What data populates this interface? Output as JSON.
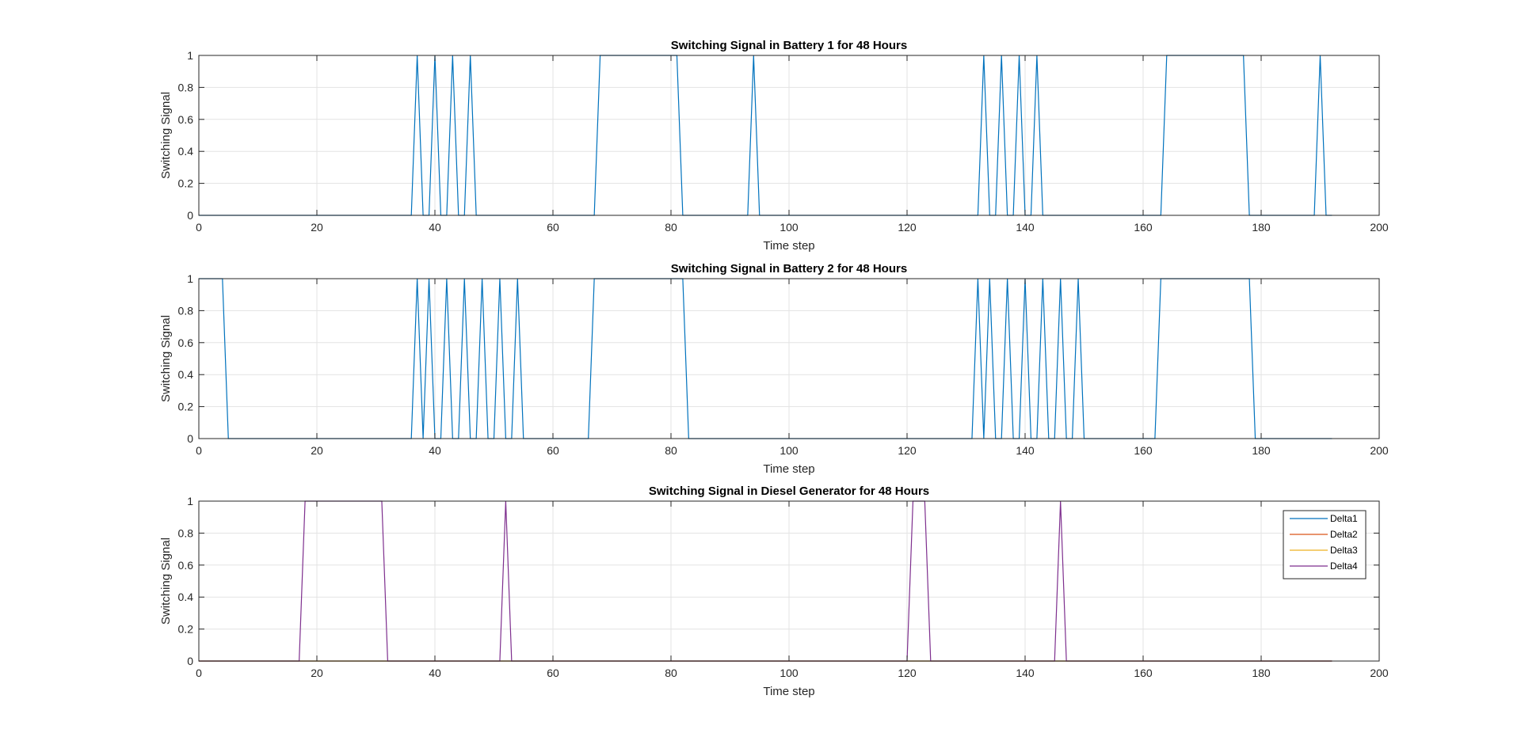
{
  "chart_data": [
    {
      "type": "line",
      "title": "Switching Signal in Battery 1 for 48 Hours",
      "xlabel": "Time step",
      "ylabel": "Switching Signal",
      "xlim": [
        0,
        200
      ],
      "ylim": [
        0,
        1
      ],
      "xticks": [
        "0",
        "20",
        "40",
        "60",
        "80",
        "100",
        "120",
        "140",
        "160",
        "180",
        "200"
      ],
      "yticks": [
        "0",
        "0.2",
        "0.4",
        "0.6",
        "0.8",
        "1"
      ],
      "grid": true,
      "legend": null,
      "series": [
        {
          "color": "#0072BD",
          "x": [
            0,
            36,
            37,
            38,
            39,
            40,
            41,
            42,
            43,
            44,
            45,
            46,
            47,
            67,
            68,
            81,
            82,
            93,
            94,
            95,
            132,
            133,
            134,
            135,
            136,
            137,
            138,
            139,
            140,
            141,
            142,
            143,
            163,
            164,
            177,
            178,
            189,
            190,
            191,
            192
          ],
          "y": [
            0,
            0,
            1,
            0,
            0,
            1,
            0,
            0,
            1,
            0,
            0,
            1,
            0,
            0,
            1,
            1,
            0,
            0,
            1,
            0,
            0,
            1,
            0,
            0,
            1,
            0,
            0,
            1,
            0,
            0,
            1,
            0,
            0,
            1,
            1,
            0,
            0,
            1,
            0,
            0
          ]
        }
      ]
    },
    {
      "type": "line",
      "title": "Switching Signal in Battery 2 for 48 Hours",
      "xlabel": "Time step",
      "ylabel": "Switching Signal",
      "xlim": [
        0,
        200
      ],
      "ylim": [
        0,
        1
      ],
      "xticks": [
        "0",
        "20",
        "40",
        "60",
        "80",
        "100",
        "120",
        "140",
        "160",
        "180",
        "200"
      ],
      "yticks": [
        "0",
        "0.2",
        "0.4",
        "0.6",
        "0.8",
        "1"
      ],
      "grid": true,
      "legend": null,
      "series": [
        {
          "color": "#0072BD",
          "x": [
            0,
            4,
            5,
            36,
            37,
            38,
            39,
            40,
            41,
            42,
            43,
            44,
            45,
            46,
            47,
            48,
            49,
            50,
            51,
            52,
            53,
            54,
            55,
            66,
            67,
            82,
            83,
            131,
            132,
            133,
            134,
            135,
            136,
            137,
            138,
            139,
            140,
            141,
            142,
            143,
            144,
            145,
            146,
            147,
            148,
            149,
            150,
            162,
            163,
            178,
            179,
            192
          ],
          "y": [
            1,
            1,
            0,
            0,
            1,
            0,
            1,
            0,
            0,
            1,
            0,
            0,
            1,
            0,
            0,
            1,
            0,
            0,
            1,
            0,
            0,
            1,
            0,
            0,
            1,
            1,
            0,
            0,
            1,
            0,
            1,
            0,
            0,
            1,
            0,
            0,
            1,
            0,
            0,
            1,
            0,
            0,
            1,
            0,
            0,
            1,
            0,
            0,
            1,
            1,
            0,
            0
          ]
        }
      ]
    },
    {
      "type": "line",
      "title": "Switching Signal in Diesel Generator for 48 Hours",
      "xlabel": "Time step",
      "ylabel": "Switching Signal",
      "xlim": [
        0,
        200
      ],
      "ylim": [
        0,
        1
      ],
      "xticks": [
        "0",
        "20",
        "40",
        "60",
        "80",
        "100",
        "120",
        "140",
        "160",
        "180",
        "200"
      ],
      "yticks": [
        "0",
        "0.2",
        "0.4",
        "0.6",
        "0.8",
        "1"
      ],
      "grid": true,
      "legend": "top-right",
      "series": [
        {
          "name": "Delta1",
          "color": "#0072BD",
          "x": [
            0,
            192
          ],
          "y": [
            0,
            0
          ]
        },
        {
          "name": "Delta2",
          "color": "#D95319",
          "x": [
            0,
            192
          ],
          "y": [
            0,
            0
          ]
        },
        {
          "name": "Delta3",
          "color": "#EDB120",
          "x": [
            0,
            192
          ],
          "y": [
            0,
            0
          ]
        },
        {
          "name": "Delta4",
          "color": "#7E2F8E",
          "x": [
            0,
            17,
            18,
            31,
            32,
            51,
            52,
            53,
            120,
            121,
            123,
            124,
            145,
            146,
            147,
            192
          ],
          "y": [
            0,
            0,
            1,
            1,
            0,
            0,
            1,
            0,
            0,
            1,
            1,
            0,
            0,
            1,
            0,
            0
          ]
        }
      ]
    }
  ]
}
